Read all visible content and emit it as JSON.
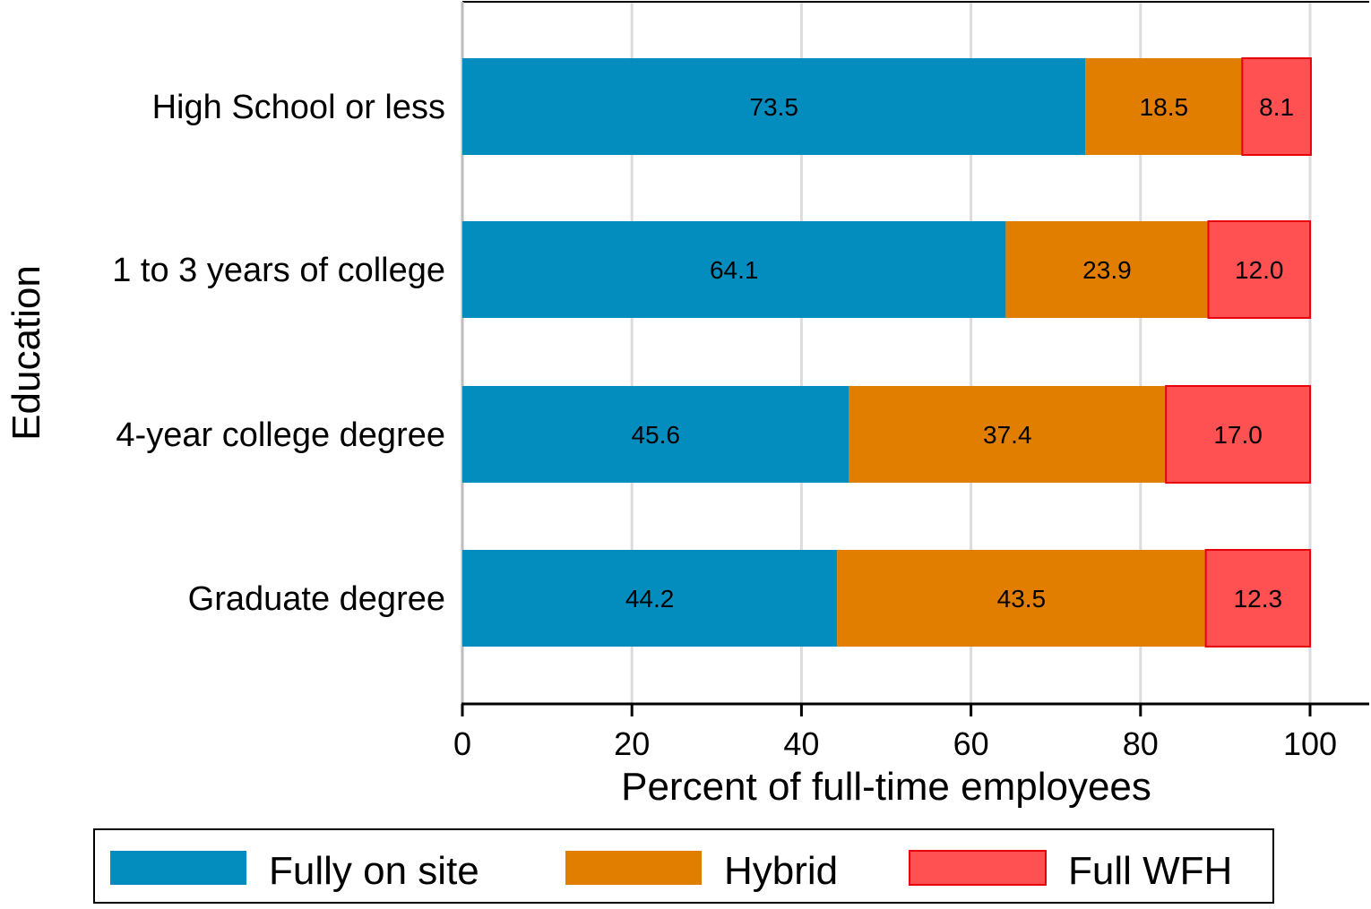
{
  "chart_data": {
    "type": "bar",
    "orientation": "horizontal",
    "stacked": true,
    "categories": [
      "High School or less",
      "1 to 3 years of college",
      "4-year college degree",
      "Graduate degree"
    ],
    "series": [
      {
        "name": "Fully on site",
        "color": "#038dbf",
        "values": [
          73.5,
          64.1,
          45.6,
          44.2
        ]
      },
      {
        "name": "Hybrid",
        "color": "#e17e00",
        "values": [
          18.5,
          23.9,
          37.4,
          43.5
        ]
      },
      {
        "name": "Full WFH",
        "color": "#ff5151",
        "stroke": "#e8000b",
        "values": [
          8.1,
          12.0,
          17.0,
          12.3
        ]
      }
    ],
    "value_labels": [
      [
        "73.5",
        "18.5",
        "8.1"
      ],
      [
        "64.1",
        "23.9",
        "12.0"
      ],
      [
        "45.6",
        "37.4",
        "17.0"
      ],
      [
        "44.2",
        "43.5",
        "12.3"
      ]
    ],
    "xlabel": "Percent of full-time employees",
    "ylabel": "Education",
    "xlim": [
      0,
      100
    ],
    "xticks": [
      0,
      20,
      40,
      60,
      80,
      100
    ],
    "xtick_labels": [
      "0",
      "20",
      "40",
      "60",
      "80",
      "100"
    ],
    "grid": true,
    "legend_position": "bottom"
  }
}
